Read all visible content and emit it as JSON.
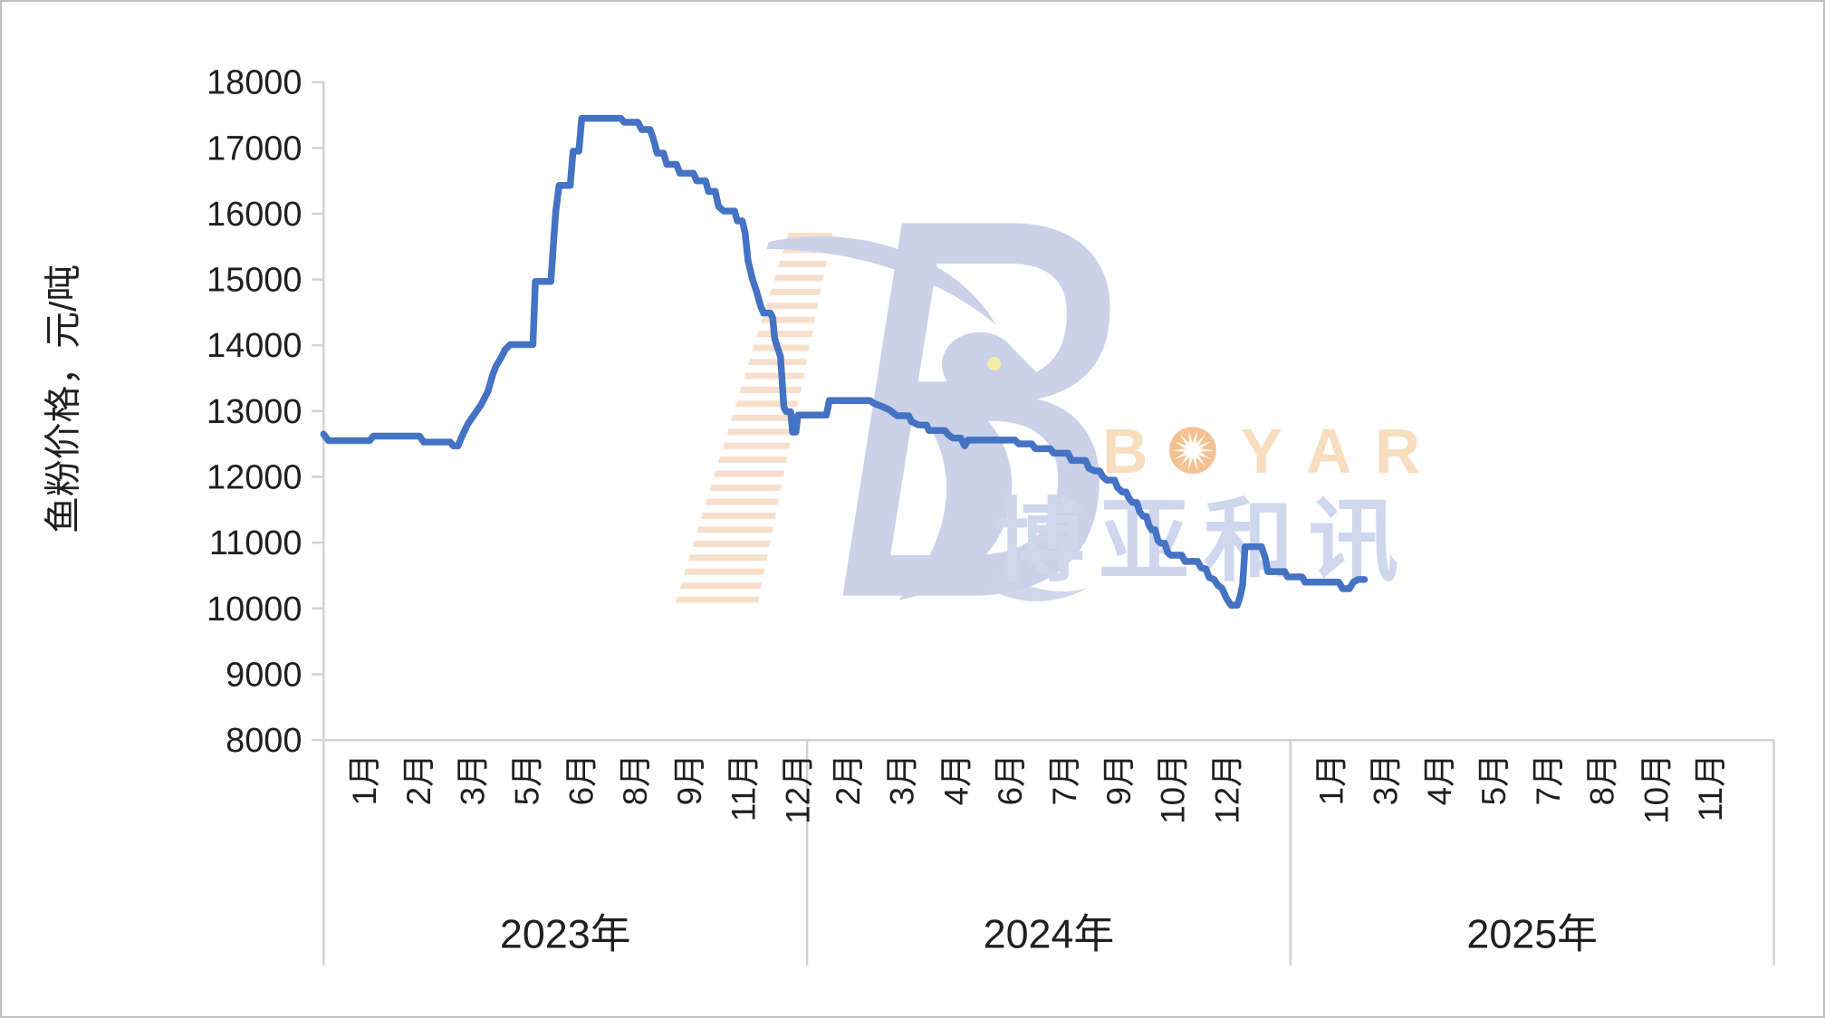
{
  "page": {
    "background": "#FFFFFF",
    "border_color": "#BFBFBF"
  },
  "colors": {
    "line": "#4472C4",
    "axis": "#D2D2D2",
    "text": "#1F1F1F"
  },
  "watermark": {
    "brand_en": "BOYAR",
    "brand_en_letters": [
      "B",
      "O",
      "Y",
      "A",
      "R"
    ],
    "brand_cn": "博亚和讯",
    "brand_cn_chars": [
      "博",
      "亚",
      "和",
      "讯"
    ],
    "colors": {
      "shape_blue": "#C9CFE8",
      "cn_text": "#CDD5EE",
      "en_text": "#F8DDBB",
      "sun": "#F4BE8C",
      "stripes": "#F0BE92",
      "eye": "#F2EFA0"
    }
  },
  "chart_data": {
    "type": "line",
    "title": "",
    "grid": "off",
    "legend": "none",
    "y_axis": {
      "title": "鱼粉价格，元/吨",
      "min": 8000,
      "max": 18000,
      "tick_step": 1000,
      "tick_labels": [
        "18000",
        "17000",
        "16000",
        "15000",
        "14000",
        "13000",
        "12000",
        "11000",
        "10000",
        "9000",
        "8000"
      ]
    },
    "x_axis": {
      "years": [
        {
          "label": "2023年",
          "month_labels": [
            "1月",
            "2月",
            "3月",
            "5月",
            "6月",
            "8月",
            "9月",
            "11月",
            "12月"
          ]
        },
        {
          "label": "2024年",
          "month_labels": [
            "2月",
            "3月",
            "4月",
            "6月",
            "7月",
            "9月",
            "10月",
            "12月"
          ]
        },
        {
          "label": "2025年",
          "month_labels": [
            "1月",
            "3月",
            "4月",
            "5月",
            "7月",
            "8月",
            "10月",
            "11月"
          ]
        }
      ]
    },
    "series": [
      {
        "name": "鱼粉价格",
        "color": "#4472C4",
        "points": [
          [
            2023.0,
            12650
          ],
          [
            2023.01,
            12550
          ],
          [
            2023.095,
            12550
          ],
          [
            2023.103,
            12620
          ],
          [
            2023.198,
            12620
          ],
          [
            2023.207,
            12530
          ],
          [
            2023.262,
            12530
          ],
          [
            2023.268,
            12470
          ],
          [
            2023.278,
            12470
          ],
          [
            2023.285,
            12600
          ],
          [
            2023.298,
            12800
          ],
          [
            2023.312,
            12950
          ],
          [
            2023.326,
            13100
          ],
          [
            2023.34,
            13300
          ],
          [
            2023.35,
            13560
          ],
          [
            2023.357,
            13690
          ],
          [
            2023.366,
            13800
          ],
          [
            2023.376,
            13940
          ],
          [
            2023.386,
            14010
          ],
          [
            2023.433,
            14010
          ],
          [
            2023.438,
            14970
          ],
          [
            2023.47,
            14970
          ],
          [
            2023.48,
            16020
          ],
          [
            2023.487,
            16430
          ],
          [
            2023.51,
            16430
          ],
          [
            2023.516,
            16950
          ],
          [
            2023.528,
            16950
          ],
          [
            2023.534,
            17450
          ],
          [
            2023.615,
            17450
          ],
          [
            2023.622,
            17390
          ],
          [
            2023.65,
            17390
          ],
          [
            2023.658,
            17280
          ],
          [
            2023.675,
            17280
          ],
          [
            2023.682,
            17140
          ],
          [
            2023.69,
            16920
          ],
          [
            2023.703,
            16920
          ],
          [
            2023.71,
            16750
          ],
          [
            2023.73,
            16750
          ],
          [
            2023.737,
            16615
          ],
          [
            2023.765,
            16615
          ],
          [
            2023.772,
            16500
          ],
          [
            2023.79,
            16500
          ],
          [
            2023.796,
            16340
          ],
          [
            2023.81,
            16340
          ],
          [
            2023.817,
            16110
          ],
          [
            2023.828,
            16040
          ],
          [
            2023.85,
            16040
          ],
          [
            2023.856,
            15890
          ],
          [
            2023.866,
            15890
          ],
          [
            2023.872,
            15700
          ],
          [
            2023.878,
            15280
          ],
          [
            2023.887,
            15010
          ],
          [
            2023.895,
            14830
          ],
          [
            2023.904,
            14600
          ],
          [
            2023.91,
            14490
          ],
          [
            2023.924,
            14490
          ],
          [
            2023.929,
            14420
          ],
          [
            2023.933,
            14100
          ],
          [
            2023.94,
            13940
          ],
          [
            2023.945,
            13830
          ],
          [
            2023.952,
            13060
          ],
          [
            2023.957,
            12990
          ],
          [
            2023.966,
            12990
          ],
          [
            2023.97,
            12680
          ],
          [
            2023.977,
            12680
          ],
          [
            2023.981,
            12940
          ],
          [
            2024.04,
            12940
          ],
          [
            2024.046,
            13160
          ],
          [
            2024.13,
            13160
          ],
          [
            2024.138,
            13120
          ],
          [
            2024.155,
            13070
          ],
          [
            2024.17,
            13020
          ],
          [
            2024.186,
            12930
          ],
          [
            2024.21,
            12930
          ],
          [
            2024.216,
            12840
          ],
          [
            2024.23,
            12790
          ],
          [
            2024.247,
            12790
          ],
          [
            2024.252,
            12705
          ],
          [
            2024.285,
            12705
          ],
          [
            2024.292,
            12640
          ],
          [
            2024.302,
            12590
          ],
          [
            2024.318,
            12590
          ],
          [
            2024.326,
            12470
          ],
          [
            2024.333,
            12560
          ],
          [
            2024.43,
            12560
          ],
          [
            2024.438,
            12500
          ],
          [
            2024.465,
            12500
          ],
          [
            2024.472,
            12430
          ],
          [
            2024.503,
            12430
          ],
          [
            2024.51,
            12360
          ],
          [
            2024.54,
            12360
          ],
          [
            2024.547,
            12250
          ],
          [
            2024.576,
            12250
          ],
          [
            2024.583,
            12130
          ],
          [
            2024.595,
            12090
          ],
          [
            2024.605,
            12090
          ],
          [
            2024.612,
            12000
          ],
          [
            2024.62,
            11950
          ],
          [
            2024.636,
            11950
          ],
          [
            2024.642,
            11840
          ],
          [
            2024.652,
            11770
          ],
          [
            2024.66,
            11770
          ],
          [
            2024.666,
            11675
          ],
          [
            2024.673,
            11610
          ],
          [
            2024.682,
            11610
          ],
          [
            2024.688,
            11470
          ],
          [
            2024.695,
            11400
          ],
          [
            2024.702,
            11400
          ],
          [
            2024.707,
            11265
          ],
          [
            2024.713,
            11195
          ],
          [
            2024.72,
            11195
          ],
          [
            2024.726,
            11030
          ],
          [
            2024.732,
            10990
          ],
          [
            2024.74,
            10990
          ],
          [
            2024.746,
            10850
          ],
          [
            2024.752,
            10810
          ],
          [
            2024.775,
            10810
          ],
          [
            2024.782,
            10715
          ],
          [
            2024.808,
            10715
          ],
          [
            2024.815,
            10620
          ],
          [
            2024.825,
            10600
          ],
          [
            2024.832,
            10470
          ],
          [
            2024.842,
            10440
          ],
          [
            2024.85,
            10350
          ],
          [
            2024.858,
            10310
          ],
          [
            2024.868,
            10150
          ],
          [
            2024.877,
            10050
          ],
          [
            2024.89,
            10050
          ],
          [
            2024.896,
            10185
          ],
          [
            2024.901,
            10360
          ],
          [
            2024.906,
            10940
          ],
          [
            2024.94,
            10940
          ],
          [
            2024.948,
            10760
          ],
          [
            2024.953,
            10560
          ],
          [
            2024.988,
            10560
          ],
          [
            2024.994,
            10480
          ],
          [
            2025.024,
            10480
          ],
          [
            2025.03,
            10400
          ],
          [
            2025.1,
            10400
          ],
          [
            2025.108,
            10300
          ],
          [
            2025.122,
            10300
          ],
          [
            2025.13,
            10400
          ],
          [
            2025.14,
            10440
          ],
          [
            2025.153,
            10440
          ]
        ]
      }
    ]
  }
}
